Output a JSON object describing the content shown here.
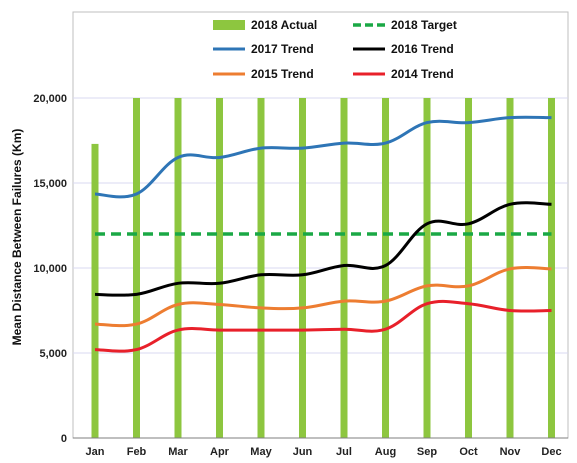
{
  "chart_data": {
    "type": "bar",
    "title": "",
    "xlabel": "",
    "ylabel": "Mean Distance Between Failures (Km)",
    "ylim": [
      0,
      20000
    ],
    "yticks": [
      "0",
      "5,000",
      "10,000",
      "15,000",
      "20,000"
    ],
    "ytick_values": [
      0,
      5000,
      10000,
      15000,
      20000
    ],
    "categories": [
      "Jan",
      "Feb",
      "Mar",
      "Apr",
      "May",
      "Jun",
      "Jul",
      "Aug",
      "Sep",
      "Oct",
      "Nov",
      "Dec"
    ],
    "grid": "horizontal",
    "legend_position": "top",
    "series": [
      {
        "name": "2018 Actual",
        "kind": "bar",
        "color": "#8dc63f",
        "values": [
          17300,
          20000,
          20000,
          20000,
          20000,
          20000,
          20000,
          20000,
          20000,
          20000,
          20000,
          20000
        ]
      },
      {
        "name": "2018 Target",
        "kind": "dashed-line",
        "color": "#1aa845",
        "values": [
          12000,
          12000,
          12000,
          12000,
          12000,
          12000,
          12000,
          12000,
          12000,
          12000,
          12000,
          12000
        ]
      },
      {
        "name": "2017 Trend",
        "kind": "line",
        "color": "#2e75b6",
        "values": [
          14350,
          14350,
          16500,
          16500,
          17050,
          17050,
          17350,
          17350,
          18550,
          18550,
          18850,
          18850
        ]
      },
      {
        "name": "2016 Trend",
        "kind": "line",
        "color": "#000000",
        "values": [
          8450,
          8450,
          9100,
          9100,
          9600,
          9600,
          10150,
          10150,
          12600,
          12600,
          13750,
          13750
        ]
      },
      {
        "name": "2015 Trend",
        "kind": "line",
        "color": "#ed7d31",
        "values": [
          6700,
          6700,
          7850,
          7850,
          7650,
          7650,
          8050,
          8050,
          8950,
          8950,
          9950,
          9950
        ]
      },
      {
        "name": "2014 Trend",
        "kind": "line",
        "color": "#e8202a",
        "values": [
          5200,
          5200,
          6350,
          6350,
          6350,
          6350,
          6400,
          6400,
          7900,
          7900,
          7500,
          7500
        ]
      }
    ]
  }
}
